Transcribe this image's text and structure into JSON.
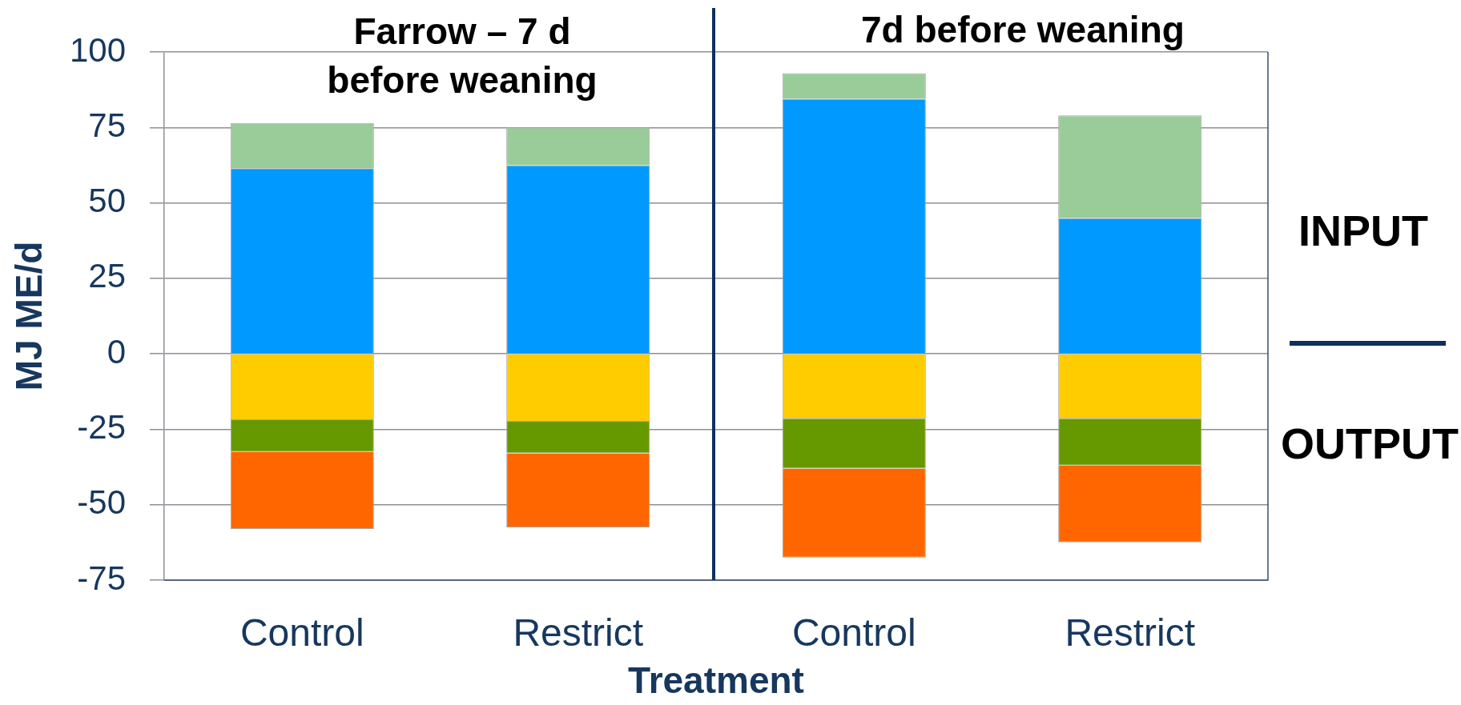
{
  "chart_data": {
    "type": "bar",
    "categories": [
      "Control",
      "Restrict",
      "Control",
      "Restrict"
    ],
    "series": [
      {
        "color": "#0099ff",
        "values": [
          61.5,
          62.5,
          84.5,
          45
        ]
      },
      {
        "color": "#99cc99",
        "values": [
          15,
          12.5,
          8.5,
          34
        ]
      },
      {
        "color": "#ffcc00",
        "values": [
          -22,
          -22.5,
          -21.5,
          -21.5
        ]
      },
      {
        "color": "#669900",
        "values": [
          -10.5,
          -10.5,
          -16.5,
          -15.5
        ]
      },
      {
        "color": "#ff6600",
        "values": [
          -25.5,
          -24.5,
          -29.5,
          -25.5
        ]
      }
    ],
    "stacked": true,
    "ylim": [
      -75,
      100
    ],
    "yticks": [
      -75,
      -50,
      -25,
      0,
      25,
      50,
      75,
      100
    ],
    "grid": "y",
    "xlabel": "Treatment",
    "ylabel": "MJ ME/d",
    "annotations": [
      "Farrow – 7 d before weaning",
      "7d before weaning",
      "INPUT",
      "OUTPUT"
    ]
  }
}
